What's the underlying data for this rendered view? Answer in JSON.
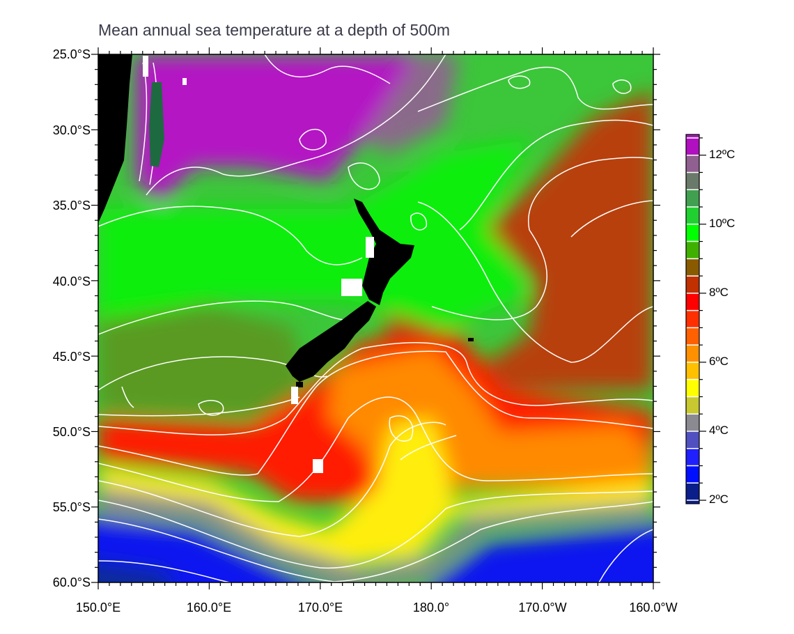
{
  "title": "Mean annual sea temperature at a depth of 500m",
  "chart_data": {
    "type": "heatmap",
    "title": "Mean annual sea temperature at a depth of 500m",
    "x_ticks": [
      "150.0°E",
      "160.0°E",
      "170.0°E",
      "180.0°",
      "170.0°W",
      "160.0°W"
    ],
    "y_ticks": [
      "25.0°S",
      "30.0°S",
      "35.0°S",
      "40.0°S",
      "45.0°S",
      "50.0°S",
      "55.0°S",
      "60.0°S"
    ],
    "lon_range": [
      150,
      200
    ],
    "lat_range": [
      -60,
      -25
    ],
    "colorbar": {
      "labels": [
        "12ºC",
        "10ºC",
        "8ºC",
        "6ºC",
        "4ºC",
        "2ºC"
      ],
      "values": [
        12,
        10,
        8,
        6,
        4,
        2
      ],
      "range": [
        1.9,
        12.6
      ],
      "step": 0.5,
      "colors": [
        "#0b1f8a",
        "#0010ff",
        "#2020ff",
        "#5050c0",
        "#8a8a90",
        "#c8c830",
        "#ffff00",
        "#ffc000",
        "#ff9000",
        "#ff6000",
        "#ff3000",
        "#ff0000",
        "#c03000",
        "#8a5a00",
        "#40b000",
        "#00ff00",
        "#20d030",
        "#40a050",
        "#6a7a6a",
        "#906090",
        "#b010c0",
        "#a020b0",
        "#704070",
        "#206040"
      ]
    },
    "units": "ºC"
  }
}
